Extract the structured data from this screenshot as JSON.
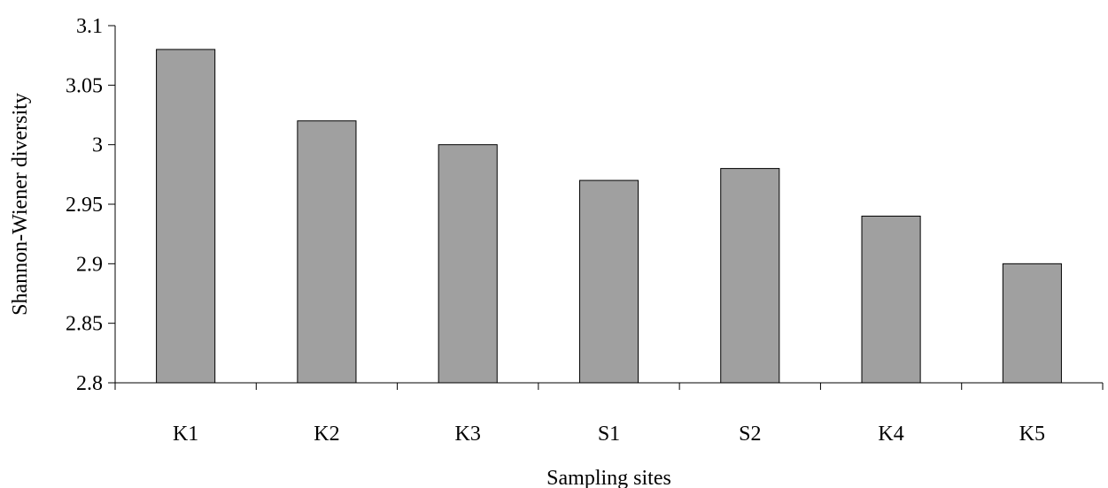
{
  "chart_data": {
    "type": "bar",
    "title": "",
    "xlabel": "Sampling sites",
    "ylabel": "Shannon-Wiener diversity",
    "categories": [
      "K1",
      "K2",
      "K3",
      "S1",
      "S2",
      "K4",
      "K5"
    ],
    "values": [
      3.08,
      3.02,
      3.0,
      2.97,
      2.98,
      2.94,
      2.9
    ],
    "ylim": [
      2.8,
      3.1
    ],
    "yticks": [
      "2.8",
      "2.85",
      "2.9",
      "2.95",
      "3",
      "3.05",
      "3.1"
    ],
    "grid": false,
    "legend": "none",
    "bar_color": "#a0a0a0"
  }
}
